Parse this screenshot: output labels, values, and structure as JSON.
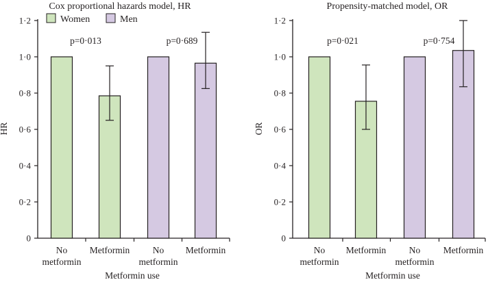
{
  "legend": {
    "items": [
      {
        "name": "Women",
        "color": "#cfe5bd"
      },
      {
        "name": "Men",
        "color": "#d5c9e2"
      }
    ]
  },
  "colors": {
    "axis": "#231f20",
    "women": "#cfe5bd",
    "men": "#d5c9e2"
  },
  "chart_data": [
    {
      "type": "bar",
      "title": "Cox proportional hazards model, HR",
      "ylabel": "HR",
      "xlabel": "Metformin use",
      "ylim": [
        0,
        1.2
      ],
      "yticks": [
        {
          "value": 0,
          "label": "0"
        },
        {
          "value": 0.2,
          "label": "0·2"
        },
        {
          "value": 0.4,
          "label": "0·4"
        },
        {
          "value": 0.6,
          "label": "0·6"
        },
        {
          "value": 0.8,
          "label": "0·8"
        },
        {
          "value": 1.0,
          "label": "1·0"
        },
        {
          "value": 1.2,
          "label": "1·2"
        }
      ],
      "categories": [
        {
          "line1": "No",
          "line2": "metformin"
        },
        {
          "line1": "Metformin",
          "line2": ""
        },
        {
          "line1": "No",
          "line2": "metformin"
        },
        {
          "line1": "Metformin",
          "line2": ""
        }
      ],
      "bars": [
        {
          "group": "Women",
          "value": 1.0,
          "lower": null,
          "upper": null
        },
        {
          "group": "Women",
          "value": 0.785,
          "lower": 0.65,
          "upper": 0.95
        },
        {
          "group": "Men",
          "value": 1.0,
          "lower": null,
          "upper": null
        },
        {
          "group": "Men",
          "value": 0.965,
          "lower": 0.825,
          "upper": 1.135
        }
      ],
      "pvalues": [
        {
          "label": "p=0·013",
          "group": "Women"
        },
        {
          "label": "p=0·689",
          "group": "Men"
        }
      ]
    },
    {
      "type": "bar",
      "title": "Propensity-matched model, OR",
      "ylabel": "OR",
      "xlabel": "Metformin use",
      "ylim": [
        0,
        1.2
      ],
      "yticks": [
        {
          "value": 0,
          "label": "0"
        },
        {
          "value": 0.2,
          "label": "0·2"
        },
        {
          "value": 0.4,
          "label": "0·4"
        },
        {
          "value": 0.6,
          "label": "0·6"
        },
        {
          "value": 0.8,
          "label": "0·8"
        },
        {
          "value": 1.0,
          "label": "1·0"
        },
        {
          "value": 1.2,
          "label": "1·2"
        }
      ],
      "categories": [
        {
          "line1": "No",
          "line2": "metformin"
        },
        {
          "line1": "Metformin",
          "line2": ""
        },
        {
          "line1": "No",
          "line2": "metformin"
        },
        {
          "line1": "Metformin",
          "line2": ""
        }
      ],
      "bars": [
        {
          "group": "Women",
          "value": 1.0,
          "lower": null,
          "upper": null
        },
        {
          "group": "Women",
          "value": 0.755,
          "lower": 0.6,
          "upper": 0.955
        },
        {
          "group": "Men",
          "value": 1.0,
          "lower": null,
          "upper": null
        },
        {
          "group": "Men",
          "value": 1.035,
          "lower": 0.835,
          "upper": 1.2
        }
      ],
      "pvalues": [
        {
          "label": "p=0·021",
          "group": "Women"
        },
        {
          "label": "p=0·754",
          "group": "Men"
        }
      ]
    }
  ]
}
